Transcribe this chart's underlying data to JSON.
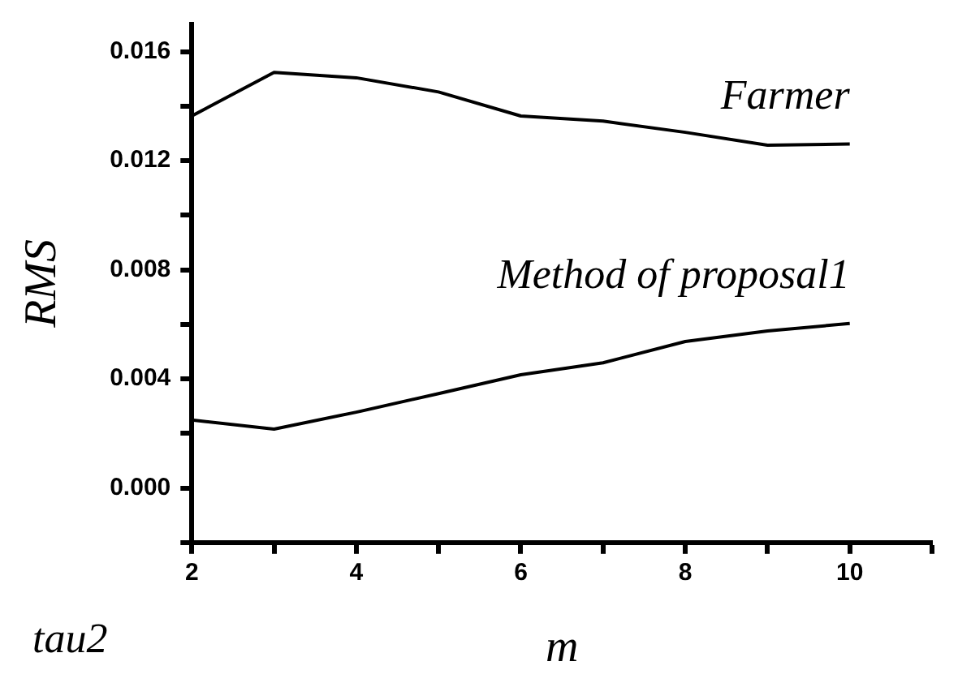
{
  "chart_data": {
    "type": "line",
    "xlabel": "m",
    "ylabel": "RMS",
    "annotations": [
      "tau2"
    ],
    "x": [
      2,
      3,
      4,
      5,
      6,
      7,
      8,
      9,
      10
    ],
    "series": [
      {
        "name": "Farmer",
        "color": "#000000",
        "values": [
          0.01364,
          0.01524,
          0.01504,
          0.01452,
          0.01364,
          0.01345,
          0.01304,
          0.01257,
          0.01261
        ]
      },
      {
        "name": "Method of proposal1",
        "color": "#000000",
        "values": [
          0.00249,
          0.00216,
          0.00278,
          0.00346,
          0.00415,
          0.00459,
          0.00537,
          0.00576,
          0.00603
        ]
      }
    ],
    "xlim": [
      2,
      11
    ],
    "xticks": [
      2,
      {
        "value": 3,
        "label": null
      },
      4,
      {
        "value": 5,
        "label": null
      },
      6,
      {
        "value": 7,
        "label": null
      },
      8,
      {
        "value": 9,
        "label": null
      },
      10,
      {
        "value": 11,
        "label": null
      }
    ],
    "ylim": [
      -0.002,
      0.017
    ],
    "yticks": [
      {
        "value": -0.002,
        "label": null
      },
      {
        "value": 0,
        "label": "0.000"
      },
      {
        "value": 0.002,
        "label": null
      },
      {
        "value": 0.004,
        "label": "0.004"
      },
      {
        "value": 0.006,
        "label": null
      },
      {
        "value": 0.008,
        "label": "0.008"
      },
      {
        "value": 0.01,
        "label": null
      },
      {
        "value": 0.012,
        "label": "0.012"
      },
      {
        "value": 0.014,
        "label": null
      },
      {
        "value": 0.016,
        "label": "0.016"
      }
    ],
    "grid": false,
    "legend": false,
    "marker": "none",
    "line_style": "solid"
  }
}
